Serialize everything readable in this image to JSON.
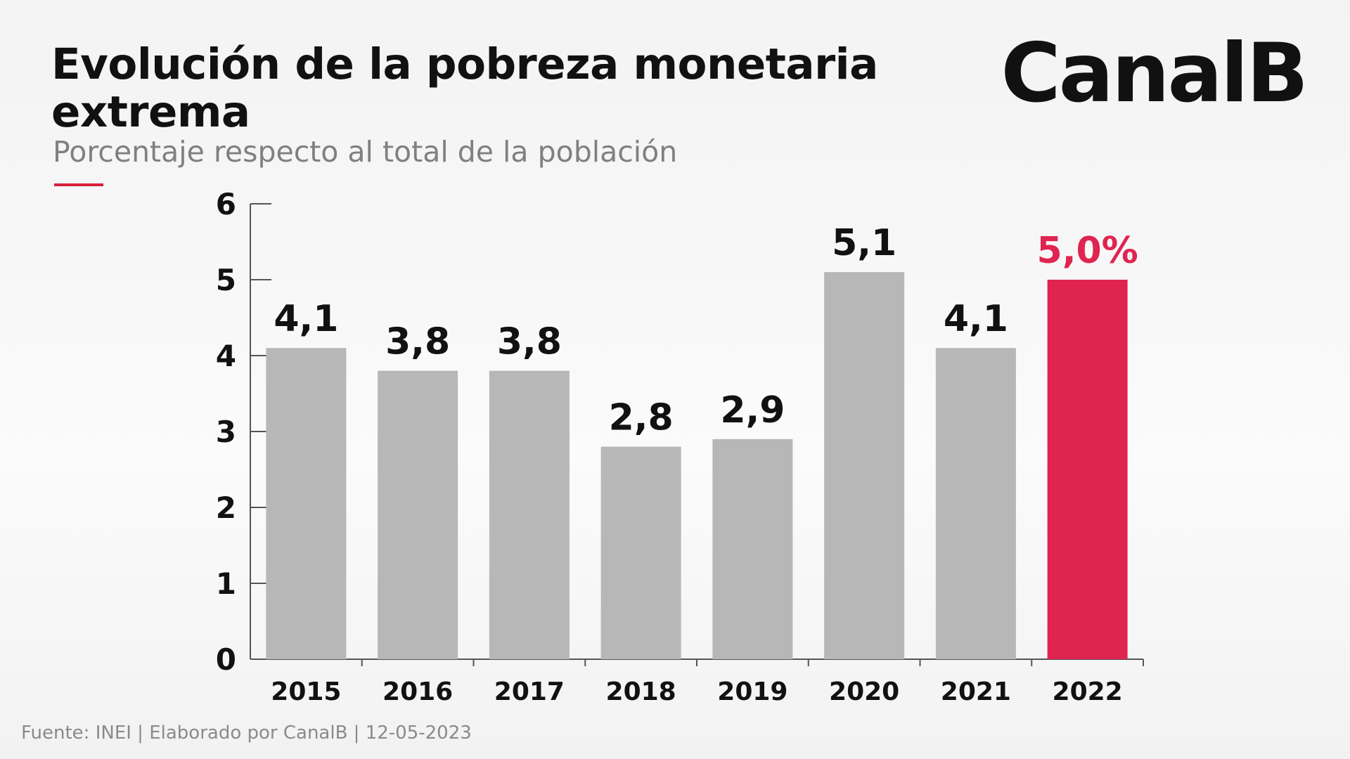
{
  "header": {
    "title": "Evolución de la pobreza monetaria extrema",
    "subtitle": "Porcentaje respecto al total de la población",
    "brand": "CanalB"
  },
  "footer": {
    "source": "Fuente: INEI | Elaborado por CanalB | 12-05-2023"
  },
  "colors": {
    "bar": "#b7b7b7",
    "highlight": "#df2450",
    "axis": "#555555",
    "text": "#111111",
    "accent": "#d71f3a"
  },
  "chart_data": {
    "type": "bar",
    "categories": [
      "2015",
      "2016",
      "2017",
      "2018",
      "2019",
      "2020",
      "2021",
      "2022"
    ],
    "values": [
      4.1,
      3.8,
      3.8,
      2.8,
      2.9,
      5.1,
      4.1,
      5.0
    ],
    "data_labels": [
      "4,1",
      "3,8",
      "3,8",
      "2,8",
      "2,9",
      "5,1",
      "4,1",
      "5,0%"
    ],
    "highlight_index": 7,
    "yticks": [
      "0",
      "1",
      "2",
      "3",
      "4",
      "5",
      "6"
    ],
    "ylim": [
      0,
      6
    ],
    "title": "Evolución de la pobreza monetaria extrema",
    "subtitle": "Porcentaje respecto al total de la población",
    "grid": false,
    "legend": "none"
  }
}
